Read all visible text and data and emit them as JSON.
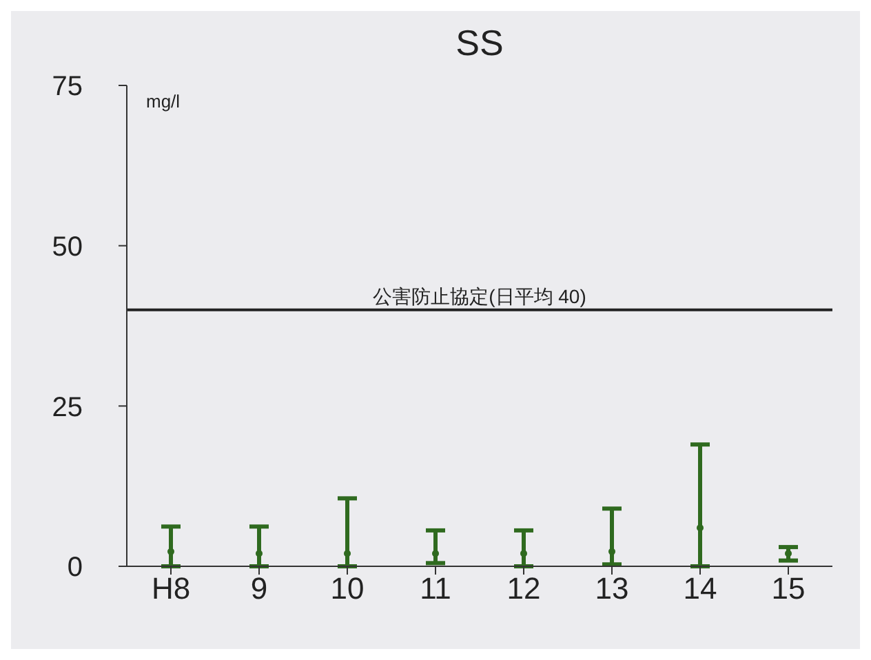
{
  "chart_data": {
    "type": "scatter",
    "title": "SS",
    "ylabel": "mg/l",
    "categories": [
      "H8",
      "9",
      "10",
      "11",
      "12",
      "13",
      "14",
      "15"
    ],
    "series": [
      {
        "color": "#2f6a1f",
        "values": [
          2.3,
          2,
          2,
          2,
          2,
          2.3,
          6,
          2
        ],
        "errors": [
          [
            0,
            6.2
          ],
          [
            0,
            6.2
          ],
          [
            0,
            10.6
          ],
          [
            0.5,
            5.6
          ],
          [
            0,
            5.6
          ],
          [
            0.3,
            9
          ],
          [
            0,
            19
          ],
          [
            0.9,
            3
          ]
        ]
      }
    ],
    "ylim": [
      0,
      75
    ],
    "yticks": [
      0,
      25,
      50,
      75
    ],
    "ref_lines": [
      {
        "axis": "y",
        "value": 40,
        "label": "公害防止協定(日平均 40)",
        "color": "#222222"
      }
    ],
    "marker": "circle",
    "legend": false,
    "grid": false
  }
}
